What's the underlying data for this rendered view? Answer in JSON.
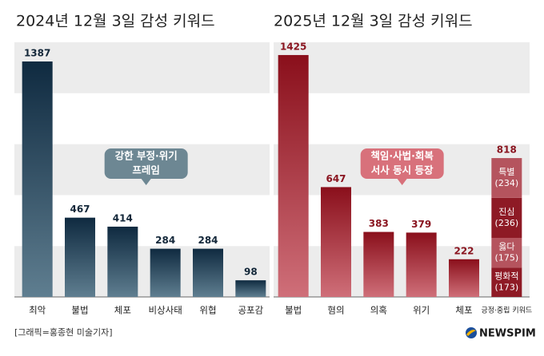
{
  "chart_data": [
    {
      "type": "bar",
      "title": "2024년 12월 3일 감성 키워드",
      "categories": [
        "최악",
        "불법",
        "체포",
        "비상사태",
        "위협",
        "공포감"
      ],
      "values": [
        1387,
        467,
        414,
        284,
        284,
        98
      ],
      "color": [
        "#0f2a40",
        "#5f7e90"
      ],
      "label_color": "#14283a",
      "ylim": [
        0,
        1500
      ],
      "yticks": [
        0,
        300,
        600,
        900,
        1200,
        1500
      ],
      "grid": "bands",
      "annotation": [
        "강한 부정·위기",
        "프레임"
      ],
      "annotation_color": "#6d8793"
    },
    {
      "type": "bar",
      "title": "2025년 12월 3일 감성 키워드",
      "categories": [
        "불법",
        "혐의",
        "의혹",
        "위기",
        "체포",
        "긍정·중립 키워드"
      ],
      "values": [
        1425,
        647,
        383,
        379,
        222,
        818
      ],
      "color": [
        "#8a0f1b",
        "#cf6f79"
      ],
      "label_color": "#8a1520",
      "ylim": [
        0,
        1500
      ],
      "yticks": [
        0,
        300,
        600,
        900,
        1200,
        1500
      ],
      "grid": "bands",
      "segments": [
        {
          "name": "평화적",
          "value": 173,
          "value_label": "(173)",
          "color": "#8e1a25"
        },
        {
          "name": "옳다",
          "value": 175,
          "value_label": "(175)",
          "color": "#b5545e"
        },
        {
          "name": "진심",
          "value": 236,
          "value_label": "(236)",
          "color": "#8e1a25"
        },
        {
          "name": "특별",
          "value": 234,
          "value_label": "(234)",
          "color": "#b5545e"
        }
      ],
      "annotation": [
        "책임·사법·회복",
        "서사 동시 등장"
      ],
      "annotation_color": "#d8717b"
    }
  ],
  "footer": {
    "credit": "[그래픽=홍종현 미술기자]",
    "logo": "NEWSPIM"
  }
}
